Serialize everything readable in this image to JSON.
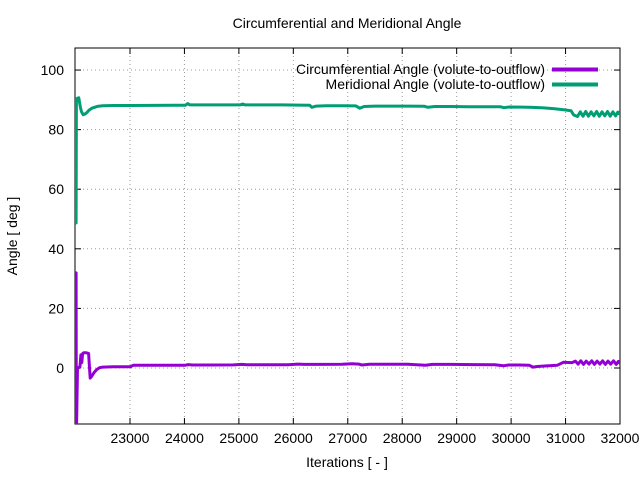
{
  "figure": {
    "background": "#ffffff"
  },
  "chart_data": {
    "type": "line",
    "title": "Circumferential and Meridional Angle",
    "xlabel": "Iterations [ - ]",
    "ylabel": "Angle [ deg ]",
    "xlim": [
      21990,
      32000
    ],
    "ylim": [
      -18.8,
      107.4
    ],
    "x_ticks": [
      23000,
      24000,
      25000,
      26000,
      27000,
      28000,
      29000,
      30000,
      31000,
      32000
    ],
    "y_ticks": [
      0,
      20,
      40,
      60,
      80,
      100
    ],
    "grid": true,
    "grid_style": "dotted-gray",
    "legend_position": "inside-top-right",
    "colors": {
      "circumferential": "#9400d3",
      "meridional": "#009e73",
      "grid": "#9a9a9a",
      "axis": "#000000"
    },
    "series": [
      {
        "name": "Circumferential Angle (volute-to-outflow)",
        "color": "#9400d3",
        "points": [
          [
            22010,
            31.9
          ],
          [
            22013,
            -18.6
          ],
          [
            22020,
            -18.6
          ],
          [
            22035,
            0.2
          ],
          [
            22060,
            0.1
          ],
          [
            22080,
            0.3
          ],
          [
            22090,
            2.2
          ],
          [
            22098,
            4.4
          ],
          [
            22106,
            1.7
          ],
          [
            22115,
            1.8
          ],
          [
            22130,
            4.8
          ],
          [
            22150,
            5.1
          ],
          [
            22200,
            5.1
          ],
          [
            22240,
            4.9
          ],
          [
            22258,
            -0.5
          ],
          [
            22270,
            -3.4
          ],
          [
            22300,
            -2.7
          ],
          [
            22340,
            -1.5
          ],
          [
            22390,
            -0.5
          ],
          [
            22440,
            0.1
          ],
          [
            22500,
            0.3
          ],
          [
            22700,
            0.4
          ],
          [
            22950,
            0.4
          ],
          [
            23010,
            0.45
          ],
          [
            23060,
            0.9
          ],
          [
            23300,
            0.9
          ],
          [
            23700,
            0.95
          ],
          [
            24020,
            0.95
          ],
          [
            24070,
            1.15
          ],
          [
            24150,
            1.0
          ],
          [
            24500,
            1.0
          ],
          [
            24900,
            1.05
          ],
          [
            25060,
            1.2
          ],
          [
            25150,
            1.1
          ],
          [
            25500,
            1.1
          ],
          [
            25900,
            1.1
          ],
          [
            26080,
            1.3
          ],
          [
            26200,
            1.2
          ],
          [
            26500,
            1.2
          ],
          [
            26900,
            1.25
          ],
          [
            27080,
            1.4
          ],
          [
            27200,
            1.3
          ],
          [
            27260,
            1.0
          ],
          [
            27400,
            1.25
          ],
          [
            27800,
            1.25
          ],
          [
            28100,
            1.25
          ],
          [
            28430,
            0.95
          ],
          [
            28550,
            1.2
          ],
          [
            28900,
            1.2
          ],
          [
            29300,
            1.15
          ],
          [
            29700,
            1.1
          ],
          [
            29860,
            0.75
          ],
          [
            29950,
            1.0
          ],
          [
            30150,
            1.0
          ],
          [
            30330,
            0.95
          ],
          [
            30400,
            0.3
          ],
          [
            30480,
            0.5
          ],
          [
            30650,
            0.7
          ],
          [
            30850,
            0.95
          ],
          [
            30960,
            1.9
          ],
          [
            31050,
            1.85
          ],
          [
            31120,
            1.8
          ],
          [
            31180,
            2.3
          ],
          [
            31230,
            1.3
          ],
          [
            31280,
            2.4
          ],
          [
            31330,
            1.2
          ],
          [
            31380,
            2.3
          ],
          [
            31430,
            1.3
          ],
          [
            31480,
            2.4
          ],
          [
            31530,
            1.2
          ],
          [
            31580,
            2.3
          ],
          [
            31630,
            1.3
          ],
          [
            31680,
            2.4
          ],
          [
            31730,
            1.2
          ],
          [
            31780,
            2.3
          ],
          [
            31830,
            1.3
          ],
          [
            31880,
            2.4
          ],
          [
            31930,
            1.2
          ],
          [
            31970,
            2.2
          ],
          [
            32000,
            1.6
          ]
        ]
      },
      {
        "name": "Meridional Angle (volute-to-outflow)",
        "color": "#009e73",
        "points": [
          [
            22010,
            48.7
          ],
          [
            22015,
            90.3
          ],
          [
            22040,
            90.6
          ],
          [
            22060,
            90.7
          ],
          [
            22075,
            89.0
          ],
          [
            22090,
            87.5
          ],
          [
            22110,
            86.0
          ],
          [
            22140,
            85.0
          ],
          [
            22170,
            85.2
          ],
          [
            22200,
            85.6
          ],
          [
            22250,
            86.6
          ],
          [
            22300,
            87.2
          ],
          [
            22400,
            87.8
          ],
          [
            22500,
            88.0
          ],
          [
            22700,
            88.1
          ],
          [
            23000,
            88.1
          ],
          [
            23400,
            88.15
          ],
          [
            23800,
            88.2
          ],
          [
            24020,
            88.2
          ],
          [
            24060,
            88.75
          ],
          [
            24100,
            88.3
          ],
          [
            24300,
            88.3
          ],
          [
            24700,
            88.3
          ],
          [
            25020,
            88.3
          ],
          [
            25070,
            88.6
          ],
          [
            25120,
            88.3
          ],
          [
            25400,
            88.3
          ],
          [
            25800,
            88.3
          ],
          [
            26100,
            88.25
          ],
          [
            26300,
            88.2
          ],
          [
            26340,
            87.5
          ],
          [
            26420,
            87.9
          ],
          [
            26600,
            88.0
          ],
          [
            26900,
            88.0
          ],
          [
            27150,
            87.95
          ],
          [
            27220,
            87.2
          ],
          [
            27300,
            87.75
          ],
          [
            27500,
            87.9
          ],
          [
            27800,
            87.9
          ],
          [
            28100,
            87.9
          ],
          [
            28400,
            87.85
          ],
          [
            28470,
            87.5
          ],
          [
            28600,
            87.75
          ],
          [
            28900,
            87.75
          ],
          [
            29200,
            87.7
          ],
          [
            29500,
            87.7
          ],
          [
            29800,
            87.7
          ],
          [
            29870,
            87.35
          ],
          [
            29960,
            87.6
          ],
          [
            30200,
            87.55
          ],
          [
            30400,
            87.45
          ],
          [
            30600,
            87.3
          ],
          [
            30800,
            87.0
          ],
          [
            31000,
            86.6
          ],
          [
            31100,
            86.35
          ],
          [
            31150,
            84.9
          ],
          [
            31220,
            84.4
          ],
          [
            31270,
            86.0
          ],
          [
            31320,
            84.5
          ],
          [
            31370,
            86.1
          ],
          [
            31420,
            84.5
          ],
          [
            31470,
            86.0
          ],
          [
            31520,
            84.6
          ],
          [
            31570,
            86.1
          ],
          [
            31620,
            84.5
          ],
          [
            31670,
            86.0
          ],
          [
            31720,
            84.6
          ],
          [
            31770,
            86.1
          ],
          [
            31820,
            84.5
          ],
          [
            31870,
            86.0
          ],
          [
            31920,
            84.6
          ],
          [
            31960,
            85.9
          ],
          [
            32000,
            85.1
          ]
        ]
      }
    ]
  }
}
